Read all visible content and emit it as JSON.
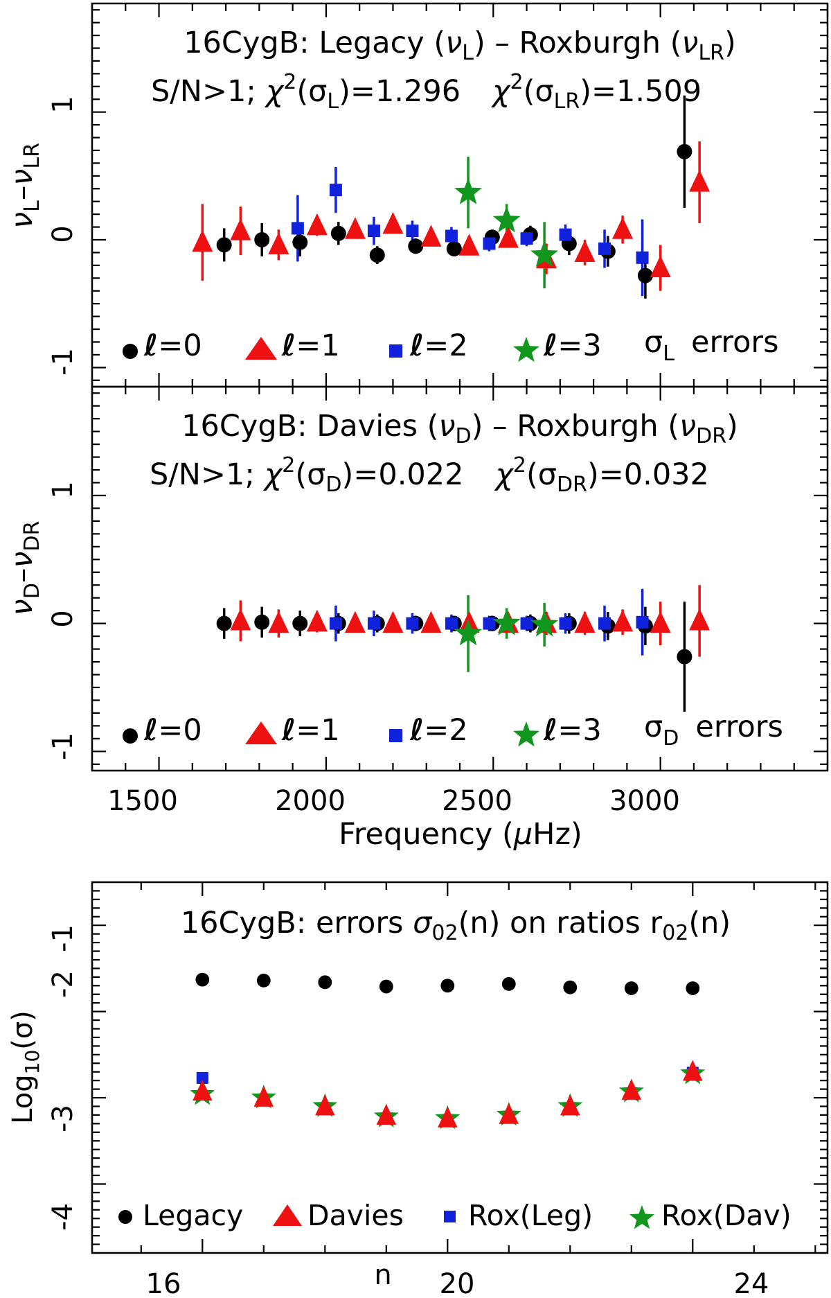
{
  "colors": {
    "l0": "#000000",
    "l1": "#ee1111",
    "l2": "#1122dd",
    "l3": "#11961e"
  },
  "shared_x": {
    "label_prefix": "Frequency (",
    "label_mu": "μ",
    "label_suffix": "Hz)",
    "xlim": [
      1300,
      3500
    ],
    "ticks": [
      "1500",
      "2000",
      "2500",
      "3000"
    ]
  },
  "chart_data": [
    {
      "id": "legacy",
      "type": "scatter",
      "title": {
        "prefix": "16CygB: Legacy (",
        "sym1": "ν",
        "sub1": "L",
        "mid": ") – Roxburgh (",
        "sym2": "ν",
        "sub2": "LR",
        "suffix": ")"
      },
      "stats": {
        "snr": "S/N>1;",
        "chi": "χ",
        "sup": "2",
        "open": "(",
        "sigma": "σ",
        "sub1": "L",
        "val1": ")=1.296",
        "sub2": "LR",
        "val2": ")=1.509"
      },
      "ylabel": {
        "a": "ν",
        "a_sub": "L",
        "dash": "–",
        "b": "ν",
        "b_sub": "LR"
      },
      "ylim": [
        -1.15,
        1.85
      ],
      "yticks": [
        "-1",
        "0",
        "1"
      ],
      "legend": {
        "l0": "=0",
        "l1": "=1",
        "l2": "=2",
        "l3": "=3",
        "ell": "ℓ",
        "sigma": "σ",
        "sigma_sub": "L",
        "errors_text": "errors"
      },
      "series": [
        {
          "name": "l=0",
          "marker": "circle",
          "color": "l0",
          "points": [
            {
              "x": 1695,
              "y": -0.04,
              "e": 0.13
            },
            {
              "x": 1808,
              "y": 0.0,
              "e": 0.13
            },
            {
              "x": 1922,
              "y": -0.02,
              "e": 0.11
            },
            {
              "x": 2037,
              "y": 0.05,
              "e": 0.09
            },
            {
              "x": 2153,
              "y": -0.12,
              "e": 0.07
            },
            {
              "x": 2268,
              "y": -0.05,
              "e": 0.06
            },
            {
              "x": 2383,
              "y": -0.07,
              "e": 0.06
            },
            {
              "x": 2497,
              "y": 0.02,
              "e": 0.06
            },
            {
              "x": 2611,
              "y": 0.04,
              "e": 0.07
            },
            {
              "x": 2727,
              "y": -0.03,
              "e": 0.09
            },
            {
              "x": 2843,
              "y": -0.09,
              "e": 0.12
            },
            {
              "x": 2955,
              "y": -0.28,
              "e": 0.18
            },
            {
              "x": 3072,
              "y": 0.69,
              "e": 0.44
            }
          ]
        },
        {
          "name": "l=1",
          "marker": "triangle",
          "color": "l1",
          "points": [
            {
              "x": 1630,
              "y": -0.02,
              "e": 0.3
            },
            {
              "x": 1744,
              "y": 0.07,
              "e": 0.19
            },
            {
              "x": 1858,
              "y": -0.04,
              "e": 0.12
            },
            {
              "x": 1973,
              "y": 0.11,
              "e": 0.08
            },
            {
              "x": 2087,
              "y": 0.08,
              "e": 0.06
            },
            {
              "x": 2200,
              "y": 0.12,
              "e": 0.05
            },
            {
              "x": 2314,
              "y": 0.02,
              "e": 0.05
            },
            {
              "x": 2428,
              "y": -0.05,
              "e": 0.05
            },
            {
              "x": 2545,
              "y": 0.01,
              "e": 0.06
            },
            {
              "x": 2659,
              "y": -0.15,
              "e": 0.12
            },
            {
              "x": 2774,
              "y": -0.1,
              "e": 0.1
            },
            {
              "x": 2887,
              "y": 0.08,
              "e": 0.11
            },
            {
              "x": 3000,
              "y": -0.22,
              "e": 0.18
            },
            {
              "x": 3117,
              "y": 0.45,
              "e": 0.32
            }
          ]
        },
        {
          "name": "l=2",
          "marker": "square",
          "color": "l2",
          "points": [
            {
              "x": 1915,
              "y": 0.09,
              "e": 0.26
            },
            {
              "x": 2029,
              "y": 0.39,
              "e": 0.18
            },
            {
              "x": 2143,
              "y": 0.07,
              "e": 0.11
            },
            {
              "x": 2258,
              "y": 0.07,
              "e": 0.08
            },
            {
              "x": 2375,
              "y": 0.03,
              "e": 0.07
            },
            {
              "x": 2488,
              "y": -0.03,
              "e": 0.06
            },
            {
              "x": 2600,
              "y": 0.01,
              "e": 0.06
            },
            {
              "x": 2716,
              "y": 0.04,
              "e": 0.08
            },
            {
              "x": 2833,
              "y": -0.07,
              "e": 0.15
            },
            {
              "x": 2946,
              "y": -0.14,
              "e": 0.3
            }
          ]
        },
        {
          "name": "l=3",
          "marker": "star",
          "color": "l3",
          "points": [
            {
              "x": 2425,
              "y": 0.37,
              "e": 0.28
            },
            {
              "x": 2540,
              "y": 0.15,
              "e": 0.13
            },
            {
              "x": 2653,
              "y": -0.12,
              "e": 0.26
            }
          ]
        }
      ]
    },
    {
      "id": "davies",
      "type": "scatter",
      "title": {
        "prefix": "16CygB: Davies (",
        "sym1": "ν",
        "sub1": "D",
        "mid": ") – Roxburgh (",
        "sym2": "ν",
        "sub2": "DR",
        "suffix": ")"
      },
      "stats": {
        "snr": "S/N>1;",
        "chi": "χ",
        "sup": "2",
        "open": "(",
        "sigma": "σ",
        "sub1": "D",
        "val1": ")=0.022",
        "sub2": "DR",
        "val2": ")=0.032"
      },
      "ylabel": {
        "a": "ν",
        "a_sub": "D",
        "dash": "–",
        "b": "ν",
        "b_sub": "DR"
      },
      "ylim": [
        -1.15,
        1.85
      ],
      "yticks": [
        "-1",
        "0",
        "1"
      ],
      "legend": {
        "l0": "=0",
        "l1": "=1",
        "l2": "=2",
        "l3": "=3",
        "ell": "ℓ",
        "sigma": "σ",
        "sigma_sub": "D",
        "errors_text": "errors"
      },
      "series": [
        {
          "name": "l=0",
          "marker": "circle",
          "color": "l0",
          "points": [
            {
              "x": 1695,
              "y": 0.0,
              "e": 0.12
            },
            {
              "x": 1808,
              "y": 0.01,
              "e": 0.12
            },
            {
              "x": 1922,
              "y": 0.0,
              "e": 0.1
            },
            {
              "x": 2037,
              "y": 0.0,
              "e": 0.08
            },
            {
              "x": 2153,
              "y": 0.0,
              "e": 0.07
            },
            {
              "x": 2268,
              "y": 0.0,
              "e": 0.06
            },
            {
              "x": 2383,
              "y": 0.0,
              "e": 0.06
            },
            {
              "x": 2497,
              "y": 0.0,
              "e": 0.06
            },
            {
              "x": 2611,
              "y": 0.0,
              "e": 0.07
            },
            {
              "x": 2727,
              "y": 0.0,
              "e": 0.08
            },
            {
              "x": 2843,
              "y": -0.02,
              "e": 0.11
            },
            {
              "x": 2955,
              "y": -0.02,
              "e": 0.15
            },
            {
              "x": 3072,
              "y": -0.26,
              "e": 0.43
            }
          ]
        },
        {
          "name": "l=1",
          "marker": "triangle",
          "color": "l1",
          "points": [
            {
              "x": 1744,
              "y": 0.02,
              "e": 0.16
            },
            {
              "x": 1858,
              "y": 0.0,
              "e": 0.11
            },
            {
              "x": 1973,
              "y": 0.01,
              "e": 0.08
            },
            {
              "x": 2087,
              "y": 0.0,
              "e": 0.06
            },
            {
              "x": 2200,
              "y": 0.0,
              "e": 0.05
            },
            {
              "x": 2314,
              "y": 0.0,
              "e": 0.05
            },
            {
              "x": 2428,
              "y": 0.0,
              "e": 0.05
            },
            {
              "x": 2545,
              "y": 0.0,
              "e": 0.06
            },
            {
              "x": 2659,
              "y": 0.0,
              "e": 0.09
            },
            {
              "x": 2774,
              "y": 0.0,
              "e": 0.09
            },
            {
              "x": 2887,
              "y": 0.01,
              "e": 0.1
            },
            {
              "x": 3000,
              "y": 0.0,
              "e": 0.17
            },
            {
              "x": 3117,
              "y": 0.02,
              "e": 0.28
            }
          ]
        },
        {
          "name": "l=2",
          "marker": "square",
          "color": "l2",
          "points": [
            {
              "x": 2029,
              "y": 0.0,
              "e": 0.14
            },
            {
              "x": 2143,
              "y": 0.0,
              "e": 0.1
            },
            {
              "x": 2258,
              "y": 0.0,
              "e": 0.08
            },
            {
              "x": 2375,
              "y": 0.0,
              "e": 0.07
            },
            {
              "x": 2488,
              "y": 0.0,
              "e": 0.06
            },
            {
              "x": 2600,
              "y": 0.0,
              "e": 0.06
            },
            {
              "x": 2716,
              "y": 0.0,
              "e": 0.08
            },
            {
              "x": 2833,
              "y": 0.0,
              "e": 0.14
            },
            {
              "x": 2946,
              "y": 0.01,
              "e": 0.26
            }
          ]
        },
        {
          "name": "l=3",
          "marker": "star",
          "color": "l3",
          "points": [
            {
              "x": 2425,
              "y": -0.08,
              "e": 0.3
            },
            {
              "x": 2540,
              "y": 0.0,
              "e": 0.12
            },
            {
              "x": 2653,
              "y": -0.01,
              "e": 0.17
            }
          ]
        }
      ]
    },
    {
      "id": "ratios",
      "type": "scatter",
      "title": {
        "prefix": "16CygB: errors ",
        "sigma": "σ",
        "sigma_sub": "02",
        "mid": "(n) on ratios ",
        "r": "r",
        "r_sub": "02",
        "suffix": "(n)"
      },
      "xlabel": "n",
      "xlim": [
        14.2,
        26.2
      ],
      "xticks": [
        "16",
        "20",
        "24"
      ],
      "ylabel": {
        "prefix": "Log",
        "sub": "10",
        "suffix": "(σ)"
      },
      "ylim": [
        -4.8,
        -0.5
      ],
      "yticks": [
        "-1",
        "-2",
        "-3",
        "-4"
      ],
      "series": [
        {
          "name": "Legacy",
          "marker": "circle",
          "color": "l0",
          "x": [
            16,
            17,
            18,
            19,
            20,
            21,
            22,
            23,
            24
          ],
          "y": [
            -1.63,
            -1.64,
            -1.66,
            -1.71,
            -1.7,
            -1.68,
            -1.72,
            -1.73,
            -1.73
          ]
        },
        {
          "name": "Davies",
          "marker": "triangle",
          "color": "l1",
          "x": [
            16,
            17,
            18,
            19,
            20,
            21,
            22,
            23,
            24
          ],
          "y": [
            -2.93,
            -3.0,
            -3.1,
            -3.21,
            -3.24,
            -3.2,
            -3.1,
            -2.92,
            -2.7
          ]
        },
        {
          "name": "Rox(Leg)",
          "marker": "square",
          "color": "l2",
          "x": [
            16,
            17,
            18,
            19,
            20,
            21,
            22,
            23,
            24
          ],
          "y": [
            -2.77,
            -3.02,
            -3.13,
            -3.24,
            -3.26,
            -3.22,
            -3.12,
            -2.95,
            -2.71
          ]
        },
        {
          "name": "Rox(Dav)",
          "marker": "star",
          "color": "l3",
          "x": [
            16,
            17,
            18,
            19,
            20,
            21,
            22,
            23,
            24
          ],
          "y": [
            -2.96,
            -3.0,
            -3.1,
            -3.22,
            -3.24,
            -3.2,
            -3.1,
            -2.93,
            -2.72
          ]
        }
      ]
    }
  ]
}
